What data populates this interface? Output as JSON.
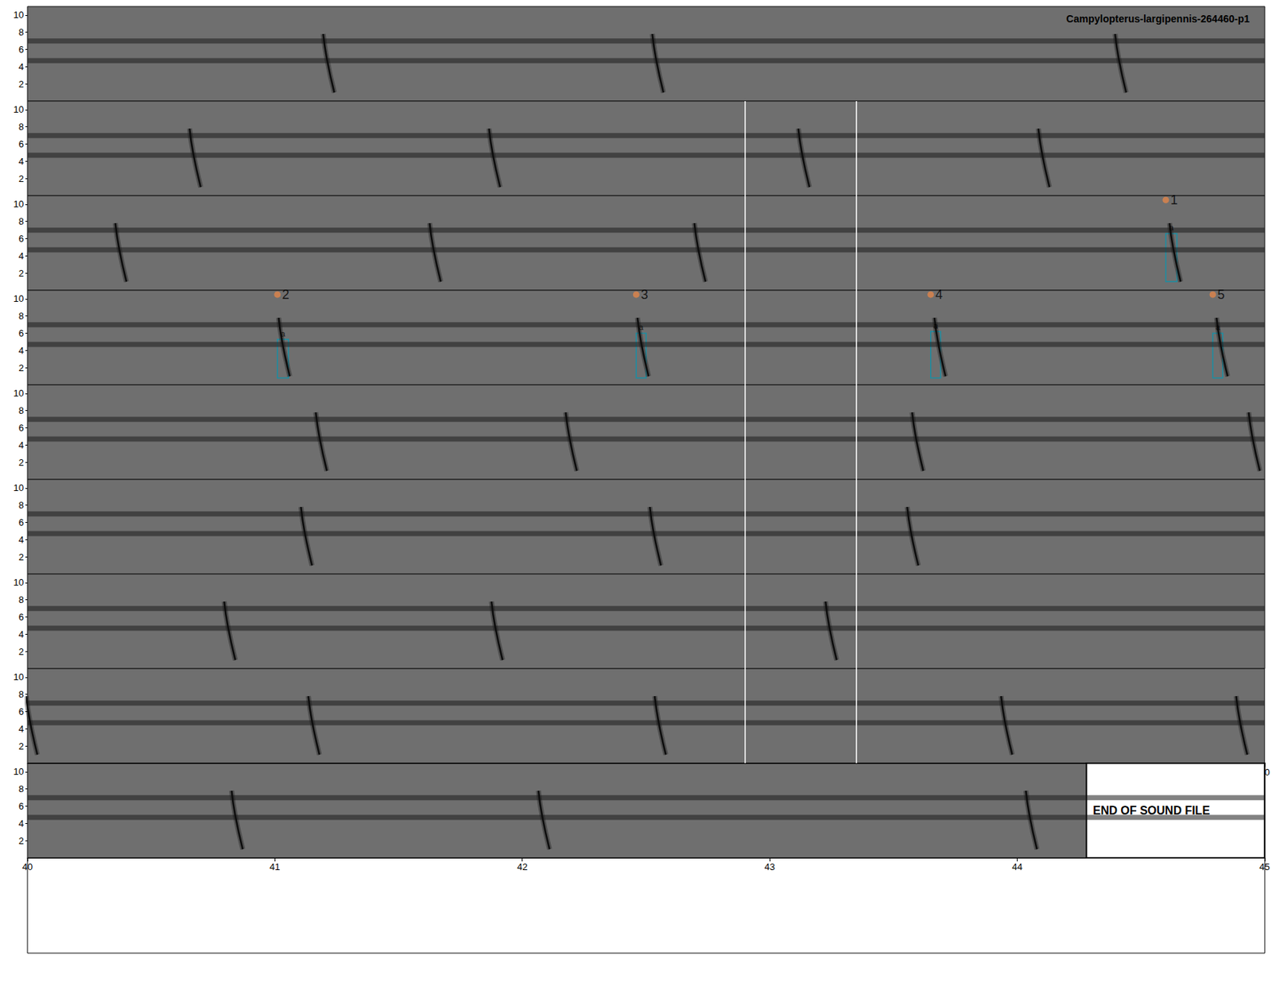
{
  "chart_data": {
    "type": "spectrogram",
    "title": "Campylopterus-largipennis-264460-p1",
    "ylim": [
      0,
      11
    ],
    "yticks": [
      2,
      4,
      6,
      8,
      10
    ],
    "xticks": [
      40,
      41,
      42,
      43,
      44,
      45
    ],
    "bands": [
      4.7,
      7.0
    ],
    "call_range": [
      1.0,
      7.8
    ],
    "rows": [
      {
        "xlim": [
          0,
          5
        ]
      },
      {
        "xlim": [
          5,
          10
        ]
      },
      {
        "xlim": [
          10,
          15
        ]
      },
      {
        "xlim": [
          15,
          20
        ]
      },
      {
        "xlim": [
          20,
          25
        ]
      },
      {
        "xlim": [
          25,
          30
        ]
      },
      {
        "xlim": [
          30,
          35
        ]
      },
      {
        "xlim": [
          35,
          40
        ]
      },
      {
        "xlim": [
          40,
          45
        ]
      }
    ],
    "calls": [
      1.21,
      2.54,
      4.41,
      5.67,
      6.88,
      8.13,
      9.1,
      10.37,
      11.64,
      12.71,
      14.63,
      16.03,
      17.48,
      18.68,
      19.82,
      21.18,
      22.19,
      23.59,
      24.95,
      26.12,
      27.53,
      28.57,
      30.81,
      31.89,
      33.24,
      35.01,
      36.15,
      37.55,
      38.95,
      39.9,
      40.84,
      42.08,
      44.05
    ],
    "dividers": [
      7.9,
      8.35,
      12.9,
      13.35,
      17.9,
      18.35,
      22.9,
      23.35,
      27.9,
      28.35,
      32.9,
      33.35,
      37.9,
      38.35
    ],
    "selections": [
      {
        "label": "1",
        "annotation": "a",
        "x": [
          14.6,
          14.645
        ],
        "y": [
          1.0,
          6.6
        ]
      },
      {
        "label": "2",
        "annotation": "a",
        "x": [
          16.01,
          16.055
        ],
        "y": [
          0.8,
          5.3
        ]
      },
      {
        "label": "3",
        "annotation": "a",
        "x": [
          17.46,
          17.5
        ],
        "y": [
          0.8,
          6.0
        ]
      },
      {
        "label": "4",
        "annotation": "a",
        "x": [
          18.65,
          18.69
        ],
        "y": [
          0.8,
          6.2
        ]
      },
      {
        "label": "5",
        "annotation": "a",
        "x": [
          19.79,
          19.83
        ],
        "y": [
          0.8,
          6.0
        ]
      }
    ],
    "end_of_file": {
      "time": 44.28,
      "label": "END OF SOUND FILE"
    }
  }
}
